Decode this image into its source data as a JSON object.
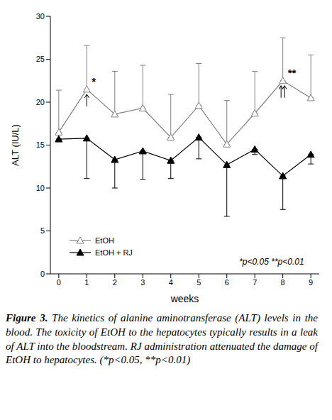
{
  "chart_data": {
    "type": "line",
    "x_label": "weeks",
    "y_label": "ALT (IU/L)",
    "x": [
      0,
      1,
      2,
      3,
      4,
      5,
      6,
      7,
      8,
      9
    ],
    "xlim": [
      -0.3,
      9.3
    ],
    "xticks": [
      0,
      1,
      2,
      3,
      4,
      5,
      6,
      7,
      8,
      9
    ],
    "ylim": [
      0,
      30
    ],
    "yticks": [
      0,
      5,
      10,
      15,
      20,
      25,
      30
    ],
    "grid": false,
    "legend": "lower left",
    "series": [
      {
        "name": "EtOH",
        "color": "#808080",
        "marker": "open_triangle",
        "values": [
          16.5,
          21.5,
          18.6,
          19.3,
          15.9,
          19.6,
          15.1,
          18.7,
          22.5,
          20.5
        ],
        "error_upper": [
          4.9,
          5.1,
          5.0,
          5.0,
          5.0,
          4.9,
          5.1,
          4.9,
          5.0,
          5.0
        ],
        "significance": [
          null,
          "*",
          null,
          null,
          null,
          null,
          null,
          null,
          "**",
          null
        ]
      },
      {
        "name": "EtOH + RJ",
        "color": "#000000",
        "marker": "triangle",
        "values": [
          15.7,
          15.8,
          13.3,
          14.3,
          13.2,
          15.9,
          12.7,
          14.5,
          11.4,
          13.9
        ],
        "error_lower": [
          0.3,
          4.7,
          3.3,
          3.3,
          2.1,
          2.5,
          6.0,
          0.6,
          3.9,
          1.1
        ]
      }
    ],
    "annotations": [
      {
        "text": "*p<0.05 **p<0.01",
        "x": 7.6,
        "y": 1.3
      }
    ],
    "caption_label": "Figure 3.",
    "caption": "The kinetics of alanine aminotransferase (ALT) levels in the blood. The toxicity of EtOH to the hepatocytes typically results in a leak of ALT into the bloodstream. RJ administration attenuated the damage of EtOH to hepatocytes. (*p<0.05, **p<0.01)"
  }
}
